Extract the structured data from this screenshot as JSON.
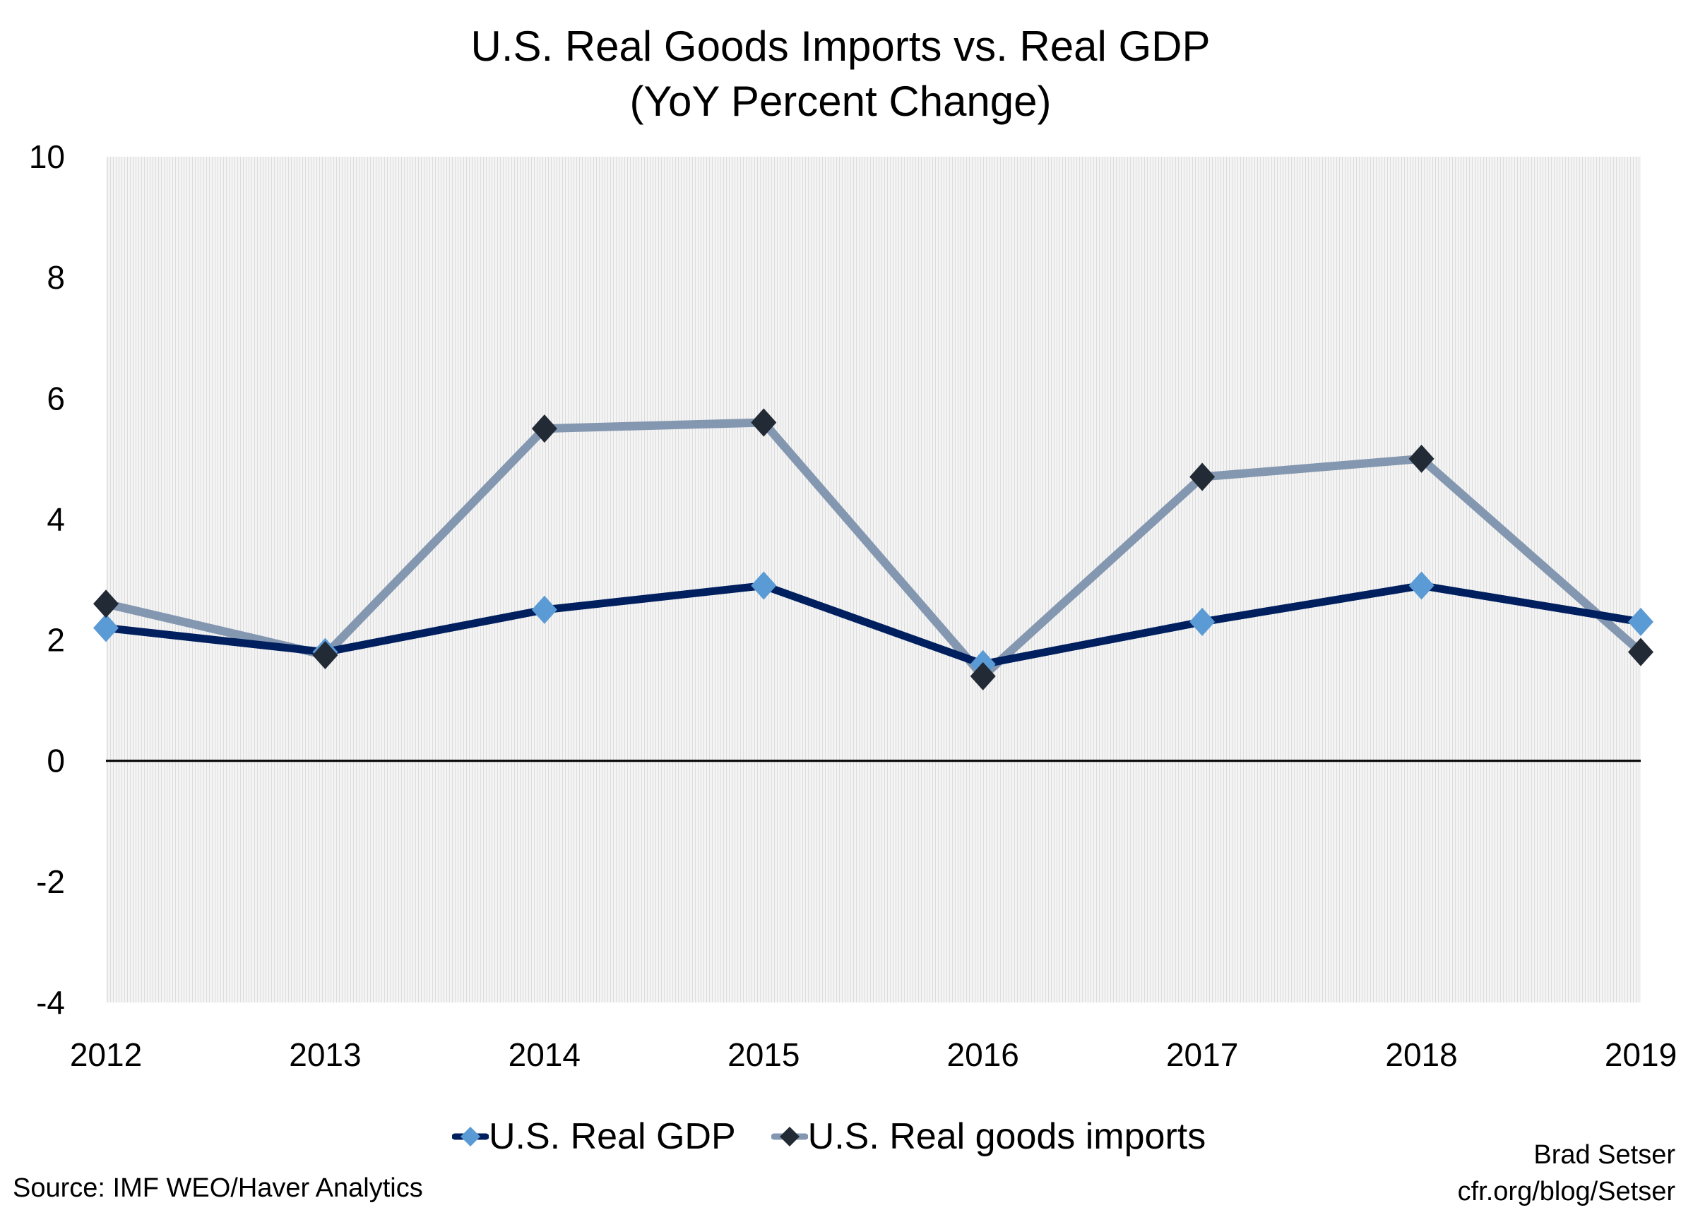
{
  "chart_data": {
    "type": "line",
    "title": "U.S. Real Goods Imports vs. Real GDP",
    "subtitle": "(YoY Percent Change)",
    "categories": [
      "2012",
      "2013",
      "2014",
      "2015",
      "2016",
      "2017",
      "2018",
      "2019"
    ],
    "ylim": [
      -4,
      10
    ],
    "yticks": [
      "10",
      "8",
      "6",
      "4",
      "2",
      "0",
      "-2",
      "-4"
    ],
    "grid": false,
    "legend": "bottom",
    "series": [
      {
        "name": "U.S. Real GDP",
        "values": [
          2.2,
          1.8,
          2.5,
          2.9,
          1.6,
          2.3,
          2.9,
          2.3
        ],
        "line_color": "#001f5f",
        "marker_color": "#5b9bd5"
      },
      {
        "name": "U.S. Real goods imports",
        "values": [
          2.6,
          1.75,
          5.5,
          5.6,
          1.4,
          4.7,
          5.0,
          1.8
        ],
        "line_color": "#8497b0",
        "marker_color": "#222a35"
      }
    ],
    "source": "Source: IMF WEO/Haver Analytics",
    "credit": [
      "Brad Setser",
      "cfr.org/blog/Setser"
    ]
  }
}
